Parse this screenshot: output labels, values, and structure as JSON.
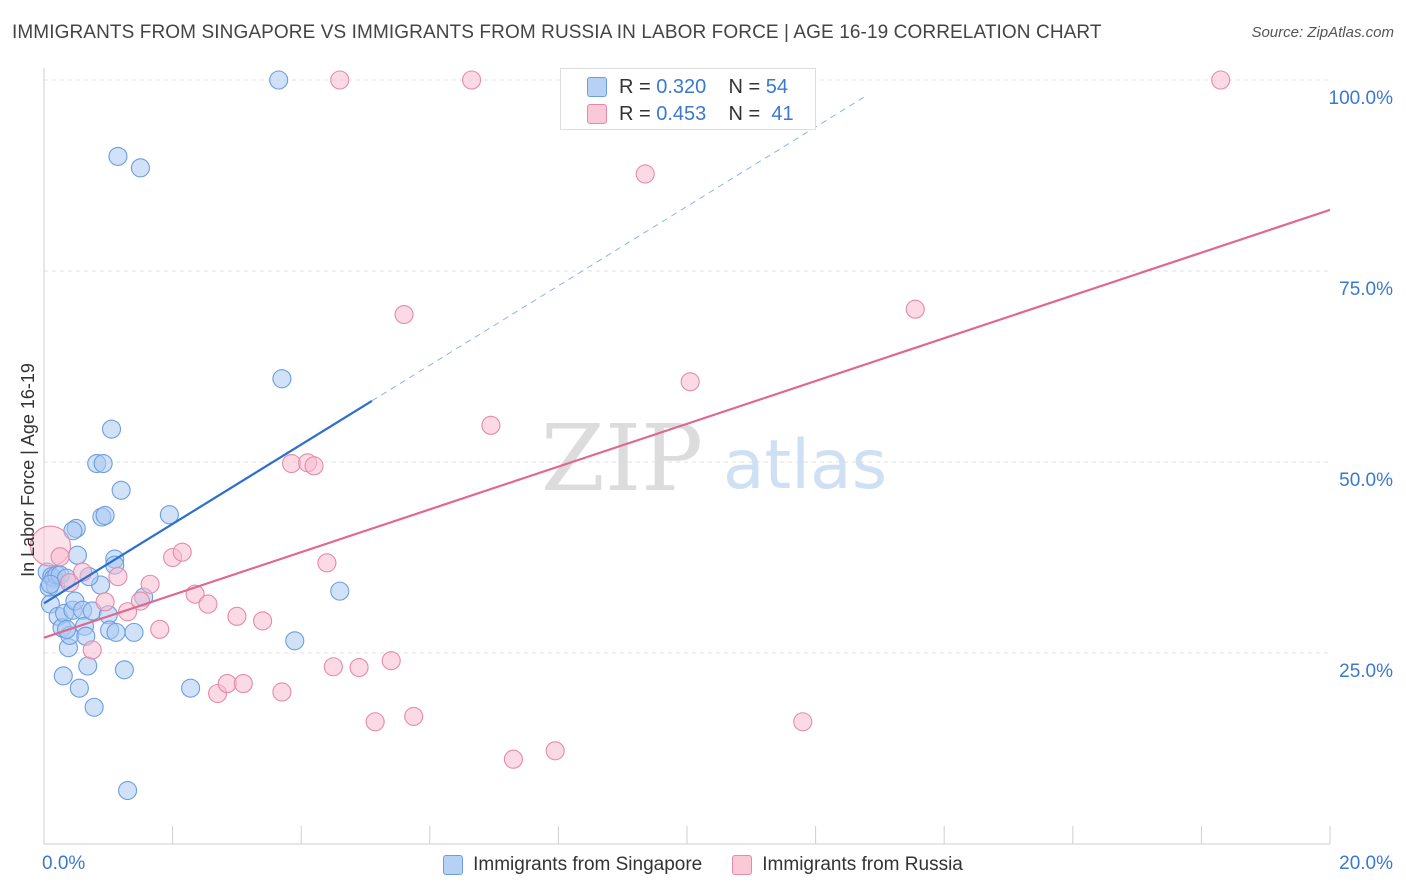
{
  "title": "IMMIGRANTS FROM SINGAPORE VS IMMIGRANTS FROM RUSSIA IN LABOR FORCE | AGE 16-19 CORRELATION CHART",
  "source": "Source: ZipAtlas.com",
  "watermark": {
    "zip": "ZIP",
    "atlas": "atlas"
  },
  "colors": {
    "singapore_fill": "#a9c8f2",
    "singapore_stroke": "#6a9ee0",
    "singapore_line": "#2d6fcc",
    "russia_fill": "#f7bcd0",
    "russia_stroke": "#e58aa8",
    "russia_line": "#e0688e",
    "axis_text": "#3a79d0"
  },
  "stats": {
    "rows": [
      {
        "r_label": "R = ",
        "r_value": "0.320",
        "n_label": "N = ",
        "n_value": "54"
      },
      {
        "r_label": "R = ",
        "r_value": "0.453",
        "n_label": "N = ",
        "n_value": "41"
      }
    ]
  },
  "legend": {
    "singapore": "Immigrants from Singapore",
    "russia": "Immigrants from Russia"
  },
  "chart_data": {
    "type": "scatter",
    "title": "IMMIGRANTS FROM SINGAPORE VS IMMIGRANTS FROM RUSSIA IN LABOR FORCE | AGE 16-19 CORRELATION CHART",
    "xlabel": "",
    "ylabel": "In Labor Force | Age 16-19",
    "xlim": [
      0,
      20
    ],
    "ylim": [
      0,
      102
    ],
    "x_tick_labels": [
      "0.0%",
      "20.0%"
    ],
    "x_tick_values": [
      0,
      20
    ],
    "y_tick_labels": [
      "25.0%",
      "50.0%",
      "75.0%",
      "100.0%"
    ],
    "y_tick_values": [
      25,
      50,
      75,
      100
    ],
    "grid": true,
    "legend_position": "bottom",
    "series": [
      {
        "name": "Immigrants from Singapore",
        "points": [
          [
            0.05,
            35.6
          ],
          [
            0.08,
            33.6
          ],
          [
            0.1,
            31.4
          ],
          [
            0.12,
            35.0
          ],
          [
            0.15,
            34.8
          ],
          [
            0.18,
            33.7
          ],
          [
            0.2,
            35.2
          ],
          [
            0.22,
            29.8
          ],
          [
            0.25,
            35.2
          ],
          [
            0.28,
            28.3
          ],
          [
            0.3,
            22.0
          ],
          [
            0.32,
            30.2
          ],
          [
            0.35,
            34.8
          ],
          [
            0.38,
            25.7
          ],
          [
            0.4,
            27.3
          ],
          [
            0.45,
            30.6
          ],
          [
            0.48,
            31.8
          ],
          [
            0.5,
            41.3
          ],
          [
            0.52,
            37.8
          ],
          [
            0.55,
            20.4
          ],
          [
            0.6,
            30.6
          ],
          [
            0.63,
            28.5
          ],
          [
            0.65,
            27.2
          ],
          [
            0.68,
            23.3
          ],
          [
            0.75,
            30.5
          ],
          [
            0.78,
            17.9
          ],
          [
            0.82,
            49.8
          ],
          [
            0.88,
            33.9
          ],
          [
            0.9,
            42.8
          ],
          [
            0.92,
            49.8
          ],
          [
            0.95,
            43.0
          ],
          [
            1.0,
            30.0
          ],
          [
            1.02,
            28.0
          ],
          [
            1.05,
            54.3
          ],
          [
            1.1,
            37.3
          ],
          [
            1.12,
            27.7
          ],
          [
            1.15,
            90.0
          ],
          [
            1.2,
            46.3
          ],
          [
            1.25,
            22.8
          ],
          [
            1.3,
            7.0
          ],
          [
            1.4,
            27.7
          ],
          [
            1.5,
            88.5
          ],
          [
            1.55,
            32.3
          ],
          [
            1.95,
            43.1
          ],
          [
            2.28,
            20.4
          ],
          [
            3.65,
            100.0
          ],
          [
            3.7,
            60.9
          ],
          [
            3.9,
            26.6
          ],
          [
            4.6,
            33.1
          ],
          [
            0.1,
            34.0
          ],
          [
            0.45,
            41.0
          ],
          [
            0.7,
            35.0
          ],
          [
            0.35,
            28.1
          ],
          [
            1.1,
            36.5
          ]
        ]
      },
      {
        "name": "Immigrants from Russia",
        "points": [
          [
            0.1,
            39.0
          ],
          [
            0.25,
            37.6
          ],
          [
            0.4,
            34.2
          ],
          [
            0.6,
            35.6
          ],
          [
            0.75,
            25.4
          ],
          [
            0.95,
            31.7
          ],
          [
            1.15,
            35.0
          ],
          [
            1.3,
            30.4
          ],
          [
            1.5,
            31.8
          ],
          [
            1.65,
            34.0
          ],
          [
            1.8,
            28.1
          ],
          [
            2.0,
            37.5
          ],
          [
            2.15,
            38.2
          ],
          [
            2.35,
            32.7
          ],
          [
            2.55,
            31.4
          ],
          [
            2.7,
            19.7
          ],
          [
            2.85,
            21.0
          ],
          [
            3.0,
            29.8
          ],
          [
            3.1,
            21.0
          ],
          [
            3.4,
            29.2
          ],
          [
            3.7,
            19.9
          ],
          [
            3.85,
            49.8
          ],
          [
            4.1,
            49.9
          ],
          [
            4.2,
            49.5
          ],
          [
            4.4,
            36.8
          ],
          [
            4.5,
            23.2
          ],
          [
            4.6,
            100.0
          ],
          [
            4.9,
            23.1
          ],
          [
            5.15,
            16.0
          ],
          [
            5.4,
            24.0
          ],
          [
            5.6,
            69.3
          ],
          [
            5.75,
            16.7
          ],
          [
            6.65,
            100.0
          ],
          [
            6.95,
            54.8
          ],
          [
            7.3,
            11.1
          ],
          [
            7.95,
            12.2
          ],
          [
            9.35,
            87.7
          ],
          [
            10.05,
            60.5
          ],
          [
            11.8,
            16.0
          ],
          [
            13.55,
            70.0
          ],
          [
            18.3,
            100.0
          ]
        ]
      }
    ],
    "trend_lines": [
      {
        "series": "Immigrants from Singapore",
        "solid": [
          [
            0,
            31.5
          ],
          [
            5.1,
            58.0
          ]
        ],
        "dashed": [
          [
            5.1,
            58.0
          ],
          [
            12.8,
            98.0
          ]
        ]
      },
      {
        "series": "Immigrants from Russia",
        "solid": [
          [
            0,
            27.0
          ],
          [
            20,
            83.0
          ]
        ]
      }
    ]
  }
}
